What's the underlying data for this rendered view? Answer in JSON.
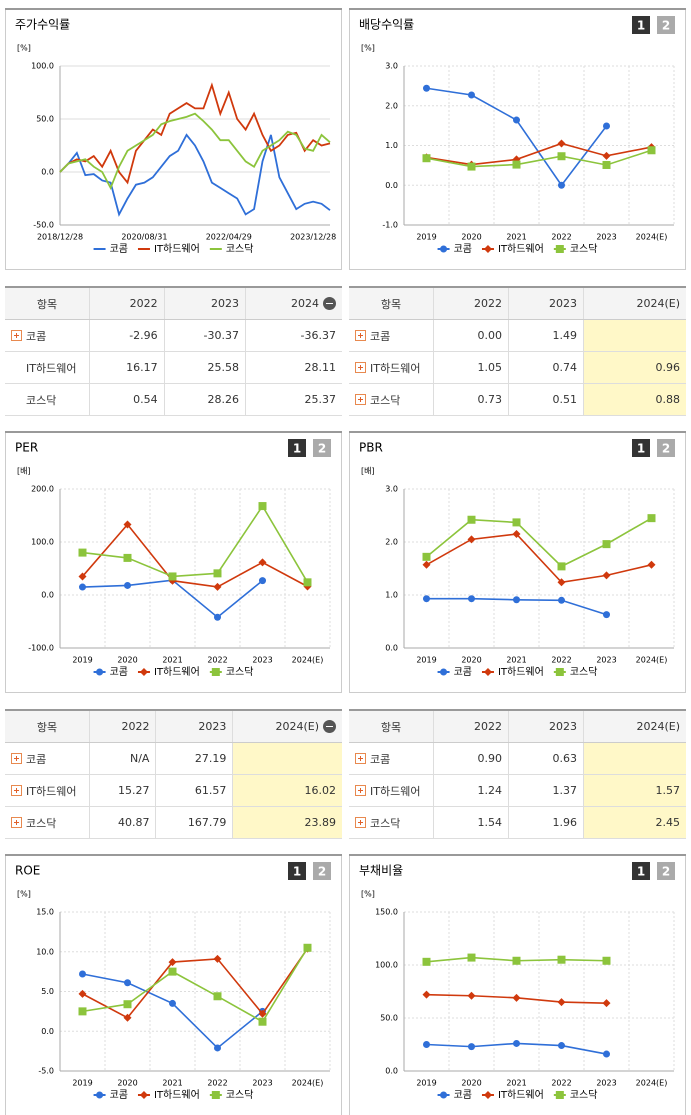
{
  "chart_data": [
    {
      "type": "line",
      "title": "주가수익률",
      "unit": "[%]",
      "markers": false,
      "categories": [
        "2018/12/28",
        null,
        null,
        null,
        null,
        null,
        null,
        null,
        null,
        null,
        "2020/08/31",
        null,
        null,
        null,
        null,
        null,
        null,
        null,
        null,
        null,
        "2022/04/29",
        null,
        null,
        null,
        null,
        null,
        null,
        null,
        null,
        null,
        "2023/12/28",
        null,
        null
      ],
      "ylim": [
        -50,
        100
      ],
      "yticks": [
        {
          "value": -50,
          "label": "-50.0"
        },
        {
          "value": 0,
          "label": "0.0"
        },
        {
          "value": 50,
          "label": "50.0"
        },
        {
          "value": 100,
          "label": "100.0"
        }
      ],
      "series": [
        {
          "name": "코콤",
          "color": "#2f6fd8",
          "values": [
            0,
            8,
            18,
            -3,
            -2,
            -8,
            -10,
            -40,
            -25,
            -12,
            -10,
            -5,
            5,
            15,
            20,
            35,
            25,
            10,
            -10,
            -15,
            -20,
            -25,
            -40,
            -35,
            10,
            35,
            -5,
            -20,
            -35,
            -30,
            -28,
            -30,
            -36
          ]
        },
        {
          "name": "IT하드웨어",
          "color": "#d0390d",
          "values": [
            0,
            8,
            12,
            10,
            15,
            5,
            20,
            0,
            -10,
            20,
            30,
            40,
            35,
            55,
            60,
            65,
            60,
            60,
            82,
            55,
            75,
            50,
            40,
            55,
            35,
            20,
            25,
            35,
            37,
            20,
            30,
            25,
            27
          ]
        },
        {
          "name": "코스닥",
          "color": "#8cc43c",
          "values": [
            0,
            8,
            10,
            12,
            5,
            0,
            -15,
            5,
            20,
            25,
            30,
            35,
            45,
            48,
            50,
            52,
            55,
            48,
            40,
            30,
            30,
            20,
            10,
            5,
            20,
            25,
            30,
            38,
            35,
            22,
            20,
            35,
            28
          ]
        }
      ]
    },
    {
      "type": "line",
      "title": "배당수익률",
      "unit": "[%]",
      "markers": true,
      "buttons": [
        "1",
        "2"
      ],
      "categories": [
        "2019",
        "2020",
        "2021",
        "2022",
        "2023",
        "2024(E)"
      ],
      "ylim": [
        -1,
        3
      ],
      "yticks": [
        {
          "value": -1,
          "label": "-1.0"
        },
        {
          "value": 0,
          "label": "0.0"
        },
        {
          "value": 1,
          "label": "1.0"
        },
        {
          "value": 2,
          "label": "2.0"
        },
        {
          "value": 3,
          "label": "3.0"
        }
      ],
      "series": [
        {
          "name": "코콤",
          "color": "#2f6fd8",
          "marker": "circle",
          "values": [
            2.44,
            2.27,
            1.64,
            0.0,
            1.49,
            null
          ]
        },
        {
          "name": "IT하드웨어",
          "color": "#d0390d",
          "marker": "diamond",
          "values": [
            0.7,
            0.52,
            0.65,
            1.05,
            0.74,
            0.96
          ]
        },
        {
          "name": "코스닥",
          "color": "#8cc43c",
          "marker": "square",
          "values": [
            0.68,
            0.47,
            0.52,
            0.73,
            0.51,
            0.88
          ]
        }
      ]
    },
    {
      "type": "line",
      "title": "PER",
      "unit": "[배]",
      "markers": true,
      "buttons": [
        "1",
        "2"
      ],
      "categories": [
        "2019",
        "2020",
        "2021",
        "2022",
        "2023",
        "2024(E)"
      ],
      "ylim": [
        -100,
        200
      ],
      "yticks": [
        {
          "value": -100,
          "label": "-100.0"
        },
        {
          "value": 0,
          "label": "0.0"
        },
        {
          "value": 100,
          "label": "100.0"
        },
        {
          "value": 200,
          "label": "200.0"
        }
      ],
      "series": [
        {
          "name": "코콤",
          "color": "#2f6fd8",
          "marker": "circle",
          "values": [
            15,
            18,
            28,
            -42,
            27.19,
            null
          ]
        },
        {
          "name": "IT하드웨어",
          "color": "#d0390d",
          "marker": "diamond",
          "values": [
            35,
            133,
            27,
            15.27,
            61.57,
            16.02
          ]
        },
        {
          "name": "코스닥",
          "color": "#8cc43c",
          "marker": "square",
          "values": [
            80,
            70,
            35,
            40.87,
            167.79,
            23.89
          ]
        }
      ]
    },
    {
      "type": "line",
      "title": "PBR",
      "unit": "[배]",
      "markers": true,
      "buttons": [
        "1",
        "2"
      ],
      "categories": [
        "2019",
        "2020",
        "2021",
        "2022",
        "2023",
        "2024(E)"
      ],
      "ylim": [
        0,
        3
      ],
      "yticks": [
        {
          "value": 0,
          "label": "0.0"
        },
        {
          "value": 1,
          "label": "1.0"
        },
        {
          "value": 2,
          "label": "2.0"
        },
        {
          "value": 3,
          "label": "3.0"
        }
      ],
      "series": [
        {
          "name": "코콤",
          "color": "#2f6fd8",
          "marker": "circle",
          "values": [
            0.93,
            0.93,
            0.91,
            0.9,
            0.63,
            null
          ]
        },
        {
          "name": "IT하드웨어",
          "color": "#d0390d",
          "marker": "diamond",
          "values": [
            1.57,
            2.05,
            2.15,
            1.24,
            1.37,
            1.57
          ]
        },
        {
          "name": "코스닥",
          "color": "#8cc43c",
          "marker": "square",
          "values": [
            1.72,
            2.42,
            2.37,
            1.54,
            1.96,
            2.45
          ]
        }
      ]
    },
    {
      "type": "line",
      "title": "ROE",
      "unit": "[%]",
      "markers": true,
      "buttons": [
        "1",
        "2"
      ],
      "categories": [
        "2019",
        "2020",
        "2021",
        "2022",
        "2023",
        "2024(E)"
      ],
      "ylim": [
        -5,
        15
      ],
      "yticks": [
        {
          "value": -5,
          "label": "-5.0"
        },
        {
          "value": 0,
          "label": "0.0"
        },
        {
          "value": 5,
          "label": "5.0"
        },
        {
          "value": 10,
          "label": "10.0"
        },
        {
          "value": 15,
          "label": "15.0"
        }
      ],
      "series": [
        {
          "name": "코콤",
          "color": "#2f6fd8",
          "marker": "circle",
          "values": [
            7.2,
            6.1,
            3.5,
            -2.1,
            2.5,
            null
          ]
        },
        {
          "name": "IT하드웨어",
          "color": "#d0390d",
          "marker": "diamond",
          "values": [
            4.7,
            1.7,
            8.7,
            9.1,
            2.2,
            10.4
          ]
        },
        {
          "name": "코스닥",
          "color": "#8cc43c",
          "marker": "square",
          "values": [
            2.5,
            3.4,
            7.5,
            4.4,
            1.2,
            10.5
          ]
        }
      ]
    },
    {
      "type": "line",
      "title": "부채비율",
      "unit": "[%]",
      "markers": true,
      "buttons": [
        "1",
        "2"
      ],
      "categories": [
        "2019",
        "2020",
        "2021",
        "2022",
        "2023",
        "2024(E)"
      ],
      "ylim": [
        0,
        150
      ],
      "yticks": [
        {
          "value": 0,
          "label": "0.0"
        },
        {
          "value": 50,
          "label": "50.0"
        },
        {
          "value": 100,
          "label": "100.0"
        },
        {
          "value": 150,
          "label": "150.0"
        }
      ],
      "series": [
        {
          "name": "코콤",
          "color": "#2f6fd8",
          "marker": "circle",
          "values": [
            25,
            23,
            26,
            24,
            16,
            null
          ]
        },
        {
          "name": "IT하드웨어",
          "color": "#d0390d",
          "marker": "diamond",
          "values": [
            72,
            71,
            69,
            65,
            64,
            null
          ]
        },
        {
          "name": "코스닥",
          "color": "#8cc43c",
          "marker": "square",
          "values": [
            103,
            107,
            104,
            105,
            104,
            null
          ]
        }
      ]
    }
  ],
  "tables": [
    {
      "headers": [
        "항목",
        "2022",
        "2023",
        "2024"
      ],
      "rows": [
        {
          "expand": true,
          "cells": [
            "코콤",
            "-2.96",
            "-30.37",
            "-36.37"
          ]
        },
        {
          "expand": false,
          "cells": [
            "IT하드웨어",
            "16.17",
            "25.58",
            "28.11"
          ]
        },
        {
          "expand": false,
          "cells": [
            "코스닥",
            "0.54",
            "28.26",
            "25.37"
          ]
        }
      ]
    },
    {
      "headers": [
        "항목",
        "2022",
        "2023",
        "2024(E)"
      ],
      "rows": [
        {
          "expand": true,
          "cells": [
            "코콤",
            "0.00",
            "1.49",
            null
          ]
        },
        {
          "expand": true,
          "cells": [
            "IT하드웨어",
            "1.05",
            "0.74",
            "0.96"
          ]
        },
        {
          "expand": true,
          "cells": [
            "코스닥",
            "0.73",
            "0.51",
            "0.88"
          ]
        }
      ]
    },
    {
      "headers": [
        "항목",
        "2022",
        "2023",
        "2024(E)"
      ],
      "rows": [
        {
          "expand": true,
          "cells": [
            "코콤",
            "N/A",
            "27.19",
            null
          ]
        },
        {
          "expand": true,
          "cells": [
            "IT하드웨어",
            "15.27",
            "61.57",
            "16.02"
          ]
        },
        {
          "expand": true,
          "cells": [
            "코스닥",
            "40.87",
            "167.79",
            "23.89"
          ]
        }
      ]
    },
    {
      "headers": [
        "항목",
        "2022",
        "2023",
        "2024(E)"
      ],
      "rows": [
        {
          "expand": true,
          "cells": [
            "코콤",
            "0.90",
            "0.63",
            null
          ]
        },
        {
          "expand": true,
          "cells": [
            "IT하드웨어",
            "1.24",
            "1.37",
            "1.57"
          ]
        },
        {
          "expand": true,
          "cells": [
            "코스닥",
            "1.54",
            "1.96",
            "2.45"
          ]
        }
      ]
    }
  ]
}
